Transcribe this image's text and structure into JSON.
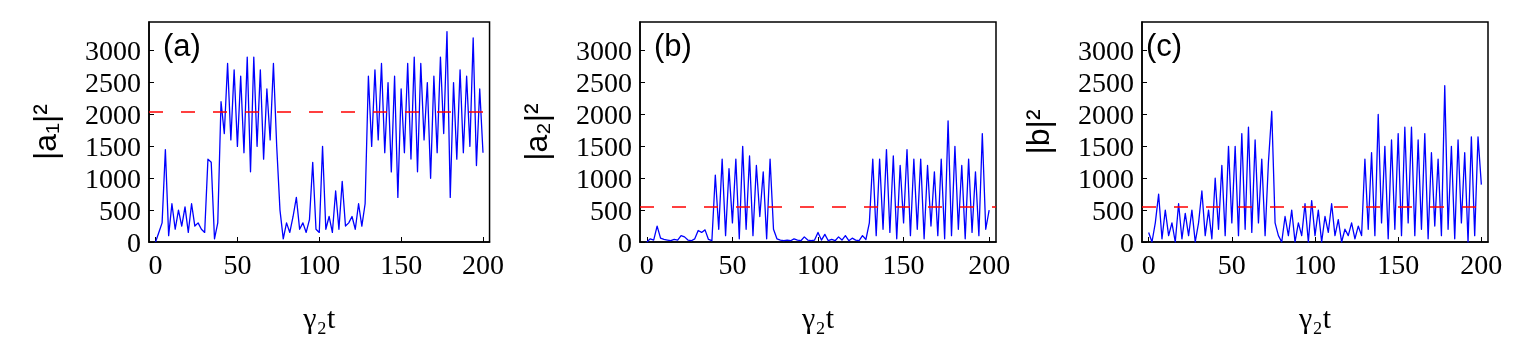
{
  "chart_data": [
    {
      "type": "line",
      "xlabel": "γ₂t",
      "ylabel": "|a₁|²",
      "annotations": [
        "(a)"
      ],
      "xlim": [
        -4,
        204
      ],
      "ylim": [
        0,
        3450
      ],
      "xticks": [
        0,
        50,
        100,
        150,
        200
      ],
      "yticks": [
        0,
        500,
        1000,
        1500,
        2000,
        2500,
        3000
      ],
      "grid": false,
      "marker": "none",
      "line_style": "solid",
      "ref_lines": [
        {
          "axis": "y",
          "value": 2050,
          "color": "#ff0000",
          "line_style": "dashed"
        }
      ],
      "x": [
        0,
        2,
        4,
        6,
        8,
        10,
        12,
        14,
        16,
        18,
        20,
        22,
        24,
        26,
        28,
        30,
        32,
        34,
        36,
        38,
        40,
        42,
        44,
        46,
        48,
        50,
        52,
        54,
        56,
        58,
        60,
        62,
        64,
        66,
        68,
        70,
        72,
        74,
        76,
        78,
        80,
        82,
        84,
        86,
        88,
        90,
        92,
        94,
        96,
        98,
        100,
        102,
        104,
        106,
        108,
        110,
        112,
        114,
        116,
        118,
        120,
        122,
        124,
        126,
        128,
        130,
        132,
        134,
        136,
        138,
        140,
        142,
        144,
        146,
        148,
        150,
        152,
        154,
        156,
        158,
        160,
        162,
        164,
        166,
        168,
        170,
        172,
        174,
        176,
        178,
        180,
        182,
        184,
        186,
        188,
        190,
        192,
        194,
        196,
        198,
        200
      ],
      "series": [
        {
          "color": "#0000ff",
          "values": [
            0,
            150,
            300,
            1450,
            100,
            600,
            200,
            500,
            250,
            550,
            150,
            600,
            250,
            300,
            200,
            150,
            1300,
            1250,
            50,
            300,
            2200,
            1700,
            2800,
            1600,
            2700,
            1500,
            2600,
            1400,
            2900,
            1100,
            2900,
            1500,
            2700,
            1300,
            2400,
            1600,
            2800,
            1500,
            500,
            50,
            300,
            150,
            400,
            700,
            200,
            300,
            150,
            350,
            1250,
            200,
            150,
            1500,
            200,
            400,
            150,
            800,
            200,
            950,
            250,
            300,
            400,
            200,
            600,
            250,
            600,
            2600,
            1500,
            2700,
            1600,
            2800,
            1400,
            2500,
            1100,
            2600,
            700,
            2400,
            1400,
            2800,
            1300,
            2900,
            1100,
            2800,
            1600,
            2500,
            1000,
            2600,
            1400,
            2900,
            1700,
            3300,
            700,
            2500,
            1300,
            2700,
            1400,
            2600,
            1500,
            3200,
            1200,
            2400,
            1400
          ]
        }
      ]
    },
    {
      "type": "line",
      "xlabel": "γ₂t",
      "ylabel": "|a₂|²",
      "annotations": [
        "(b)"
      ],
      "xlim": [
        -4,
        204
      ],
      "ylim": [
        0,
        3450
      ],
      "xticks": [
        0,
        50,
        100,
        150,
        200
      ],
      "yticks": [
        0,
        500,
        1000,
        1500,
        2000,
        2500,
        3000
      ],
      "grid": false,
      "marker": "none",
      "line_style": "solid",
      "ref_lines": [
        {
          "axis": "y",
          "value": 550,
          "color": "#ff0000",
          "line_style": "dashed"
        }
      ],
      "x": [
        0,
        2,
        4,
        6,
        8,
        10,
        12,
        14,
        16,
        18,
        20,
        22,
        24,
        26,
        28,
        30,
        32,
        34,
        36,
        38,
        40,
        42,
        44,
        46,
        48,
        50,
        52,
        54,
        56,
        58,
        60,
        62,
        64,
        66,
        68,
        70,
        72,
        74,
        76,
        78,
        80,
        82,
        84,
        86,
        88,
        90,
        92,
        94,
        96,
        98,
        100,
        102,
        104,
        106,
        108,
        110,
        112,
        114,
        116,
        118,
        120,
        122,
        124,
        126,
        128,
        130,
        132,
        134,
        136,
        138,
        140,
        142,
        144,
        146,
        148,
        150,
        152,
        154,
        156,
        158,
        160,
        162,
        164,
        166,
        168,
        170,
        172,
        174,
        176,
        178,
        180,
        182,
        184,
        186,
        188,
        190,
        192,
        194,
        196,
        198,
        200
      ],
      "series": [
        {
          "color": "#0000ff",
          "values": [
            0,
            50,
            30,
            250,
            60,
            40,
            30,
            20,
            40,
            30,
            100,
            80,
            30,
            20,
            50,
            180,
            150,
            190,
            40,
            20,
            1050,
            200,
            1300,
            100,
            1150,
            300,
            1300,
            50,
            1500,
            200,
            1350,
            100,
            1200,
            400,
            1100,
            50,
            1300,
            200,
            50,
            30,
            20,
            30,
            20,
            50,
            30,
            20,
            80,
            30,
            20,
            30,
            150,
            30,
            120,
            20,
            40,
            20,
            80,
            30,
            100,
            20,
            60,
            30,
            20,
            100,
            40,
            300,
            1300,
            100,
            1300,
            200,
            1450,
            150,
            1350,
            50,
            1200,
            300,
            1450,
            100,
            1300,
            200,
            1300,
            50,
            1200,
            250,
            1100,
            100,
            1300,
            50,
            1900,
            100,
            1500,
            200,
            1200,
            50,
            1300,
            150,
            1100,
            100,
            1700,
            200,
            500
          ]
        }
      ]
    },
    {
      "type": "line",
      "xlabel": "γ₂t",
      "ylabel": "|b|²",
      "annotations": [
        "(c)"
      ],
      "xlim": [
        -4,
        204
      ],
      "ylim": [
        0,
        3450
      ],
      "xticks": [
        0,
        50,
        100,
        150,
        200
      ],
      "yticks": [
        0,
        500,
        1000,
        1500,
        2000,
        2500,
        3000
      ],
      "grid": false,
      "marker": "none",
      "line_style": "solid",
      "ref_lines": [
        {
          "axis": "y",
          "value": 550,
          "color": "#ff0000",
          "line_style": "dashed"
        }
      ],
      "x": [
        0,
        2,
        4,
        6,
        8,
        10,
        12,
        14,
        16,
        18,
        20,
        22,
        24,
        26,
        28,
        30,
        32,
        34,
        36,
        38,
        40,
        42,
        44,
        46,
        48,
        50,
        52,
        54,
        56,
        58,
        60,
        62,
        64,
        66,
        68,
        70,
        72,
        74,
        76,
        78,
        80,
        82,
        84,
        86,
        88,
        90,
        92,
        94,
        96,
        98,
        100,
        102,
        104,
        106,
        108,
        110,
        112,
        114,
        116,
        118,
        120,
        122,
        124,
        126,
        128,
        130,
        132,
        134,
        136,
        138,
        140,
        142,
        144,
        146,
        148,
        150,
        152,
        154,
        156,
        158,
        160,
        162,
        164,
        166,
        168,
        170,
        172,
        174,
        176,
        178,
        180,
        182,
        184,
        186,
        188,
        190,
        192,
        194,
        196,
        198,
        200
      ],
      "series": [
        {
          "color": "#0000ff",
          "values": [
            150,
            0,
            300,
            750,
            50,
            500,
            100,
            300,
            0,
            600,
            50,
            450,
            100,
            500,
            0,
            300,
            800,
            100,
            500,
            50,
            1000,
            200,
            1200,
            100,
            1500,
            300,
            1500,
            100,
            1700,
            200,
            1800,
            150,
            1600,
            300,
            1300,
            100,
            1250,
            2050,
            300,
            100,
            0,
            400,
            100,
            500,
            0,
            300,
            100,
            600,
            0,
            650,
            100,
            500,
            0,
            400,
            150,
            600,
            100,
            350,
            0,
            200,
            100,
            300,
            50,
            250,
            100,
            1300,
            200,
            1400,
            100,
            2000,
            300,
            1500,
            50,
            1600,
            200,
            1700,
            100,
            1800,
            300,
            1800,
            100,
            1600,
            200,
            1700,
            50,
            1400,
            250,
            1300,
            100,
            2450,
            200,
            1500,
            50,
            1600,
            300,
            1400,
            0,
            1650,
            100,
            1650,
            900
          ]
        }
      ]
    }
  ]
}
